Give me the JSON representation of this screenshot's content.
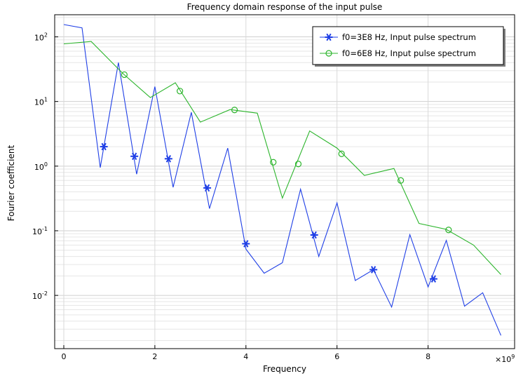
{
  "chart_data": {
    "type": "line",
    "title": "Frequency domain response of the input pulse",
    "xlabel": "Frequency",
    "ylabel": "Fourier coefficient",
    "x_multiplier_label": "×10",
    "x_multiplier_exponent": "9",
    "xlim": [
      -0.2,
      9.9
    ],
    "ylim": [
      0.0015,
      220
    ],
    "yscale": "log",
    "grid": true,
    "legend_position": "top-right",
    "x_ticks": [
      {
        "value": 0,
        "label": "0"
      },
      {
        "value": 2,
        "label": "2"
      },
      {
        "value": 4,
        "label": "4"
      },
      {
        "value": 6,
        "label": "6"
      },
      {
        "value": 8,
        "label": "8"
      }
    ],
    "y_ticks": [
      {
        "value": 0.01,
        "base": "10",
        "exp": "-2"
      },
      {
        "value": 0.1,
        "base": "10",
        "exp": "-1"
      },
      {
        "value": 1,
        "base": "10",
        "exp": "0"
      },
      {
        "value": 10,
        "base": "10",
        "exp": "1"
      },
      {
        "value": 100,
        "base": "10",
        "exp": "2"
      }
    ],
    "series": [
      {
        "name": "f0=3E8 Hz, Input pulse spectrum",
        "color": "#1f3fe6",
        "marker": "asterisk",
        "x": [
          0,
          0.4,
          0.8,
          1.2,
          1.6,
          2.0,
          2.4,
          2.8,
          3.2,
          3.6,
          4.0,
          4.4,
          4.8,
          5.2,
          5.6,
          6.0,
          6.4,
          6.8,
          7.2,
          7.6,
          8.0,
          8.4,
          8.8,
          9.2,
          9.6
        ],
        "values": [
          155,
          138,
          0.95,
          40,
          0.75,
          17,
          0.47,
          6.8,
          0.22,
          1.9,
          0.052,
          0.022,
          0.032,
          0.44,
          0.04,
          0.27,
          0.017,
          0.025,
          0.0066,
          0.087,
          0.0135,
          0.071,
          0.0068,
          0.011,
          0.0024
        ],
        "markers_x": [
          0.88,
          1.55,
          2.3,
          3.15,
          4.0,
          5.5,
          6.8,
          8.12
        ],
        "markers_y": [
          2.0,
          1.42,
          1.3,
          0.46,
          0.063,
          0.086,
          0.025,
          0.018
        ]
      },
      {
        "name": "f0=6E8 Hz, Input pulse spectrum",
        "color": "#2cb52c",
        "marker": "circle",
        "x": [
          0,
          0.6,
          1.3,
          1.9,
          2.45,
          3.0,
          3.65,
          4.25,
          4.8,
          5.4,
          6.0,
          6.6,
          7.25,
          7.8,
          8.4,
          9.0,
          9.6
        ],
        "values": [
          78,
          85,
          27,
          11.5,
          19.5,
          4.8,
          7.5,
          6.6,
          0.32,
          3.5,
          1.9,
          0.72,
          0.92,
          0.13,
          0.105,
          0.06,
          0.021
        ],
        "markers_x": [
          1.33,
          2.55,
          3.75,
          4.6,
          5.15,
          6.1,
          7.4,
          8.45
        ],
        "markers_y": [
          26,
          14.5,
          7.4,
          1.15,
          1.08,
          1.55,
          0.6,
          0.103
        ]
      }
    ]
  }
}
